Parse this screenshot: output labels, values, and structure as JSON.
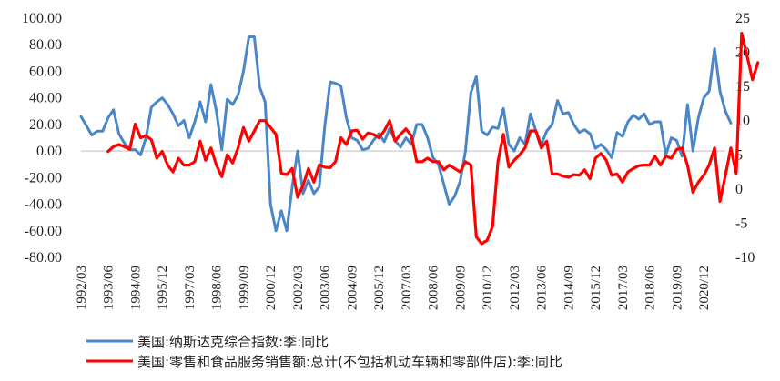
{
  "chart_data": {
    "type": "line",
    "grid": false,
    "legend_position": "bottom-left",
    "y_left": {
      "ylim": [
        -80,
        100
      ],
      "ticks": [
        "100.00",
        "80.00",
        "60.00",
        "40.00",
        "20.00",
        "0.00",
        "-20.00",
        "-40.00",
        "-60.00",
        "-80.00"
      ]
    },
    "y_right": {
      "ylim": [
        -10,
        25
      ],
      "ticks": [
        "25",
        "20",
        "15",
        "10",
        "5",
        "0",
        "-5",
        "-10"
      ]
    },
    "x_labels": [
      "1992/03",
      "1993/06",
      "1994/09",
      "1995/12",
      "1997/03",
      "1998/06",
      "1999/09",
      "2000/12",
      "2002/03",
      "2003/06",
      "2004/09",
      "2005/12",
      "2007/03",
      "2008/06",
      "2009/09",
      "2010/12",
      "2012/03",
      "2013/06",
      "2014/09",
      "2015/12",
      "2017/03",
      "2018/06",
      "2019/09",
      "2020/12"
    ],
    "x_start": "1992/03",
    "x_end": "2021/12",
    "series": [
      {
        "name": "美国:纳斯达克综合指数:季:同比",
        "axis": "left",
        "color": "#4a86c8",
        "start_index": 0,
        "values": [
          26,
          19,
          12,
          15,
          15,
          25,
          31,
          13,
          6,
          1,
          1,
          -3,
          10,
          33,
          37,
          40,
          35,
          28,
          19,
          23,
          10,
          22,
          37,
          22,
          50,
          30,
          1,
          39,
          35,
          42,
          60,
          86,
          86,
          48,
          37,
          -40,
          -60,
          -45,
          -60,
          -27,
          0,
          -32,
          -22,
          -32,
          -27,
          18,
          52,
          51,
          49,
          25,
          10,
          8,
          1,
          2,
          8,
          13,
          7,
          17,
          8,
          3,
          10,
          5,
          20,
          20,
          10,
          -5,
          -10,
          -25,
          -40,
          -34,
          -23,
          0,
          44,
          56,
          15,
          12,
          18,
          17,
          32,
          5,
          0,
          10,
          5,
          28,
          15,
          5,
          15,
          20,
          38,
          28,
          29,
          20,
          14,
          16,
          13,
          2,
          5,
          1,
          -5,
          14,
          11,
          22,
          27,
          24,
          28,
          20,
          22,
          22,
          -3,
          10,
          8,
          -4,
          35,
          0,
          25,
          40,
          45,
          77,
          45,
          30,
          21
        ]
      },
      {
        "name": "美国:零售和食品服务销售额:总计(不包括机动车辆和零部件店):季:同比",
        "axis": "right",
        "color": "#ff0000",
        "start_index": 5,
        "values": [
          5.5,
          6.2,
          6.5,
          6.2,
          5.8,
          9.5,
          7.5,
          7.8,
          7.2,
          4.5,
          5.5,
          3.5,
          2.5,
          4.5,
          3.5,
          3.5,
          4,
          7,
          4.2,
          6,
          3.5,
          1.8,
          5,
          3.8,
          6,
          9,
          7,
          8.5,
          10,
          10,
          9,
          8,
          2.3,
          2.1,
          3,
          -1.2,
          0.5,
          3.0,
          1,
          3.5,
          3.2,
          3.1,
          4.0,
          7.5,
          6.5,
          8.5,
          8.6,
          7.3,
          8.2,
          8,
          7.5,
          8.5,
          10,
          7,
          8,
          8.8,
          7.8,
          4,
          4,
          4.5,
          4,
          4,
          2.8,
          3.5,
          3,
          2.5,
          4,
          3.5,
          -7,
          -8,
          -7.5,
          -5.5,
          4,
          8,
          3.2,
          4.2,
          5,
          6,
          8.5,
          8.5,
          6,
          7,
          2.2,
          2.2,
          1.9,
          1.7,
          2.1,
          2,
          2.8,
          1.5,
          4.5,
          5.2,
          4.2,
          2,
          2.2,
          1,
          2.5,
          3,
          3.4,
          3.5,
          3.5,
          4.8,
          3.5,
          4.8,
          4.5,
          5.8,
          6,
          3.5,
          -0.5,
          1,
          2,
          3.5,
          6,
          -1.8,
          2,
          6,
          2.3,
          22.8,
          19.5,
          16,
          18.5
        ]
      }
    ]
  }
}
